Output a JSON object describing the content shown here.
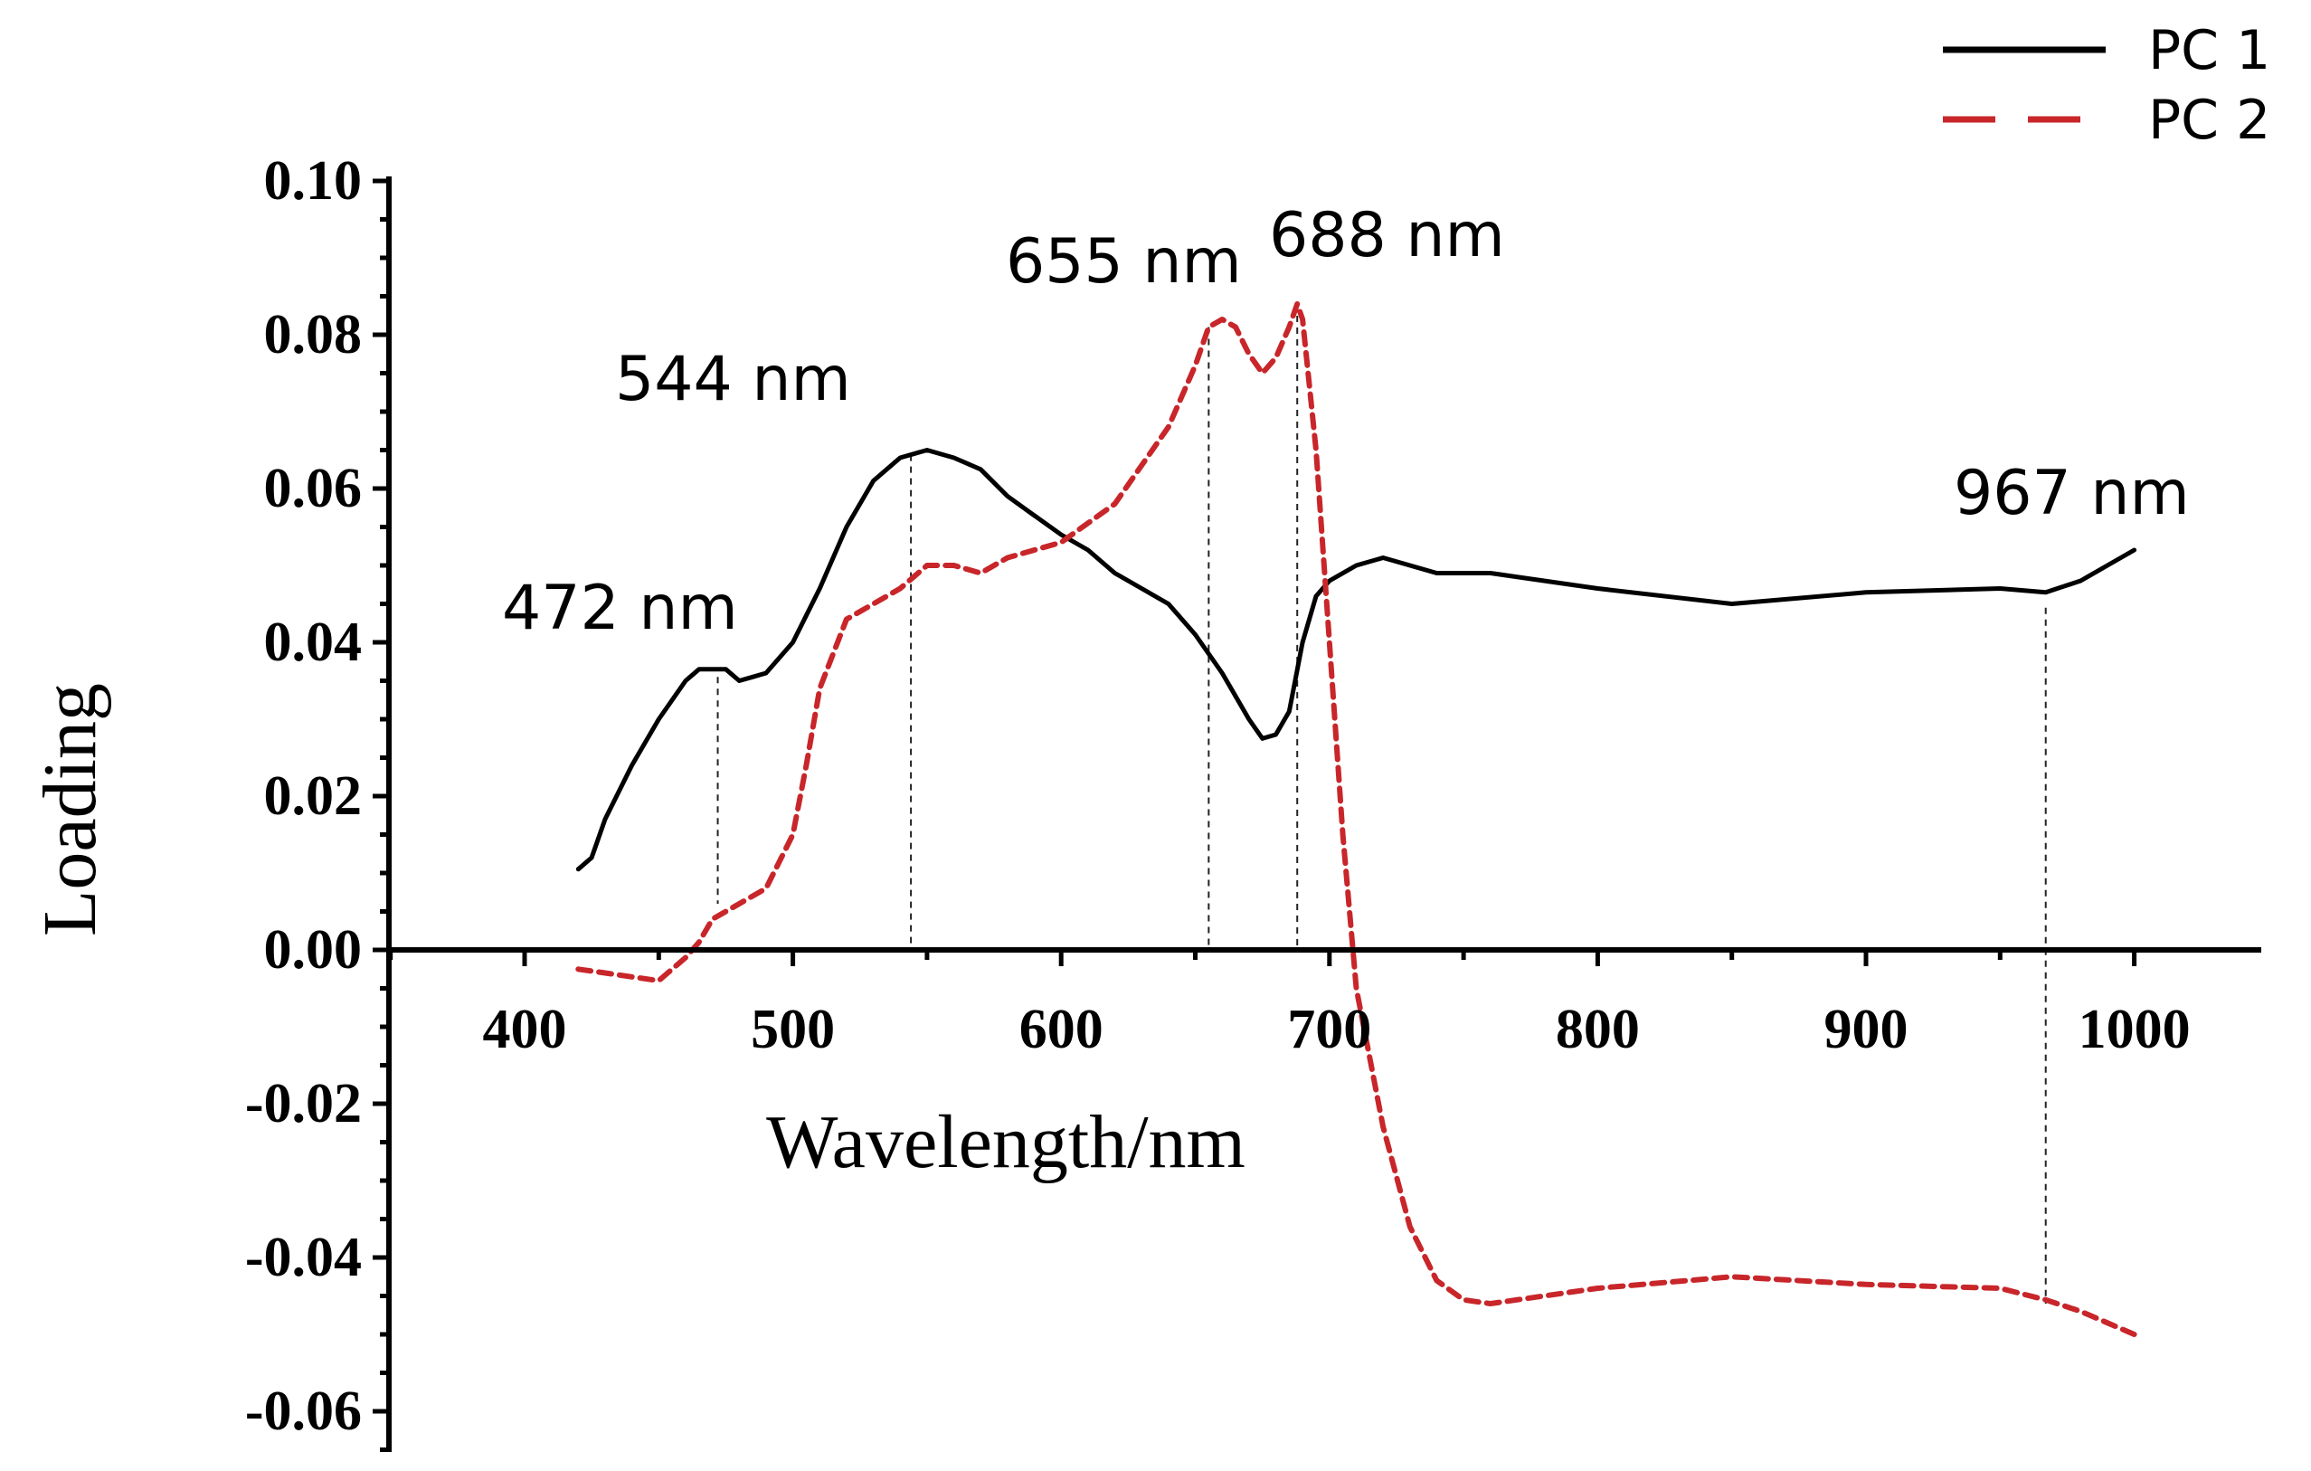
{
  "chart_data": {
    "type": "line",
    "title": "",
    "xlabel": "Wavelength/nm",
    "ylabel": "Loading",
    "xlim": [
      345,
      1050
    ],
    "ylim": [
      -0.065,
      0.1
    ],
    "x_ticks": [
      400,
      500,
      600,
      700,
      800,
      900,
      1000
    ],
    "x_tick_labels": [
      "400",
      "500",
      "600",
      "700",
      "800",
      "900",
      "1000"
    ],
    "y_ticks": [
      0.1,
      0.08,
      0.06,
      0.04,
      0.02,
      0.0,
      -0.02,
      -0.04,
      -0.06
    ],
    "y_tick_labels": [
      "0.10",
      "0.08",
      "0.06",
      "0.04",
      "0.02",
      "0.00",
      "-0.02",
      "-0.04",
      "-0.06"
    ],
    "grid": false,
    "legend_position": "top-right",
    "series": [
      {
        "name": "PC 1",
        "color": "#000000",
        "style": "solid",
        "x": [
          420,
          425,
          430,
          440,
          450,
          460,
          465,
          470,
          475,
          480,
          485,
          490,
          500,
          510,
          520,
          530,
          540,
          550,
          560,
          570,
          580,
          590,
          600,
          610,
          620,
          630,
          640,
          650,
          660,
          670,
          675,
          680,
          685,
          690,
          695,
          700,
          710,
          720,
          730,
          740,
          760,
          800,
          850,
          900,
          950,
          967,
          980,
          990,
          1000
        ],
        "y": [
          0.0105,
          0.012,
          0.017,
          0.024,
          0.03,
          0.035,
          0.0365,
          0.0365,
          0.0365,
          0.035,
          0.0355,
          0.036,
          0.04,
          0.047,
          0.055,
          0.061,
          0.064,
          0.065,
          0.064,
          0.0625,
          0.059,
          0.0565,
          0.054,
          0.052,
          0.049,
          0.047,
          0.045,
          0.041,
          0.036,
          0.03,
          0.0275,
          0.028,
          0.031,
          0.04,
          0.046,
          0.048,
          0.05,
          0.051,
          0.05,
          0.049,
          0.049,
          0.047,
          0.045,
          0.0465,
          0.047,
          0.0465,
          0.048,
          0.05,
          0.052
        ]
      },
      {
        "name": "PC 2",
        "color": "#c8262a",
        "style": "dashed",
        "x": [
          420,
          430,
          440,
          450,
          460,
          465,
          470,
          480,
          490,
          500,
          505,
          510,
          520,
          530,
          540,
          550,
          560,
          570,
          580,
          600,
          620,
          640,
          650,
          655,
          660,
          665,
          670,
          675,
          680,
          685,
          688,
          690,
          695,
          700,
          705,
          710,
          720,
          730,
          740,
          750,
          760,
          800,
          850,
          900,
          950,
          967,
          980,
          1000
        ],
        "y": [
          -0.0025,
          -0.003,
          -0.0035,
          -0.004,
          -0.001,
          0.001,
          0.004,
          0.006,
          0.008,
          0.015,
          0.024,
          0.034,
          0.043,
          0.045,
          0.047,
          0.05,
          0.05,
          0.049,
          0.051,
          0.053,
          0.058,
          0.068,
          0.076,
          0.081,
          0.082,
          0.081,
          0.0775,
          0.075,
          0.077,
          0.081,
          0.084,
          0.082,
          0.065,
          0.04,
          0.015,
          -0.005,
          -0.023,
          -0.036,
          -0.043,
          -0.0455,
          -0.046,
          -0.044,
          -0.0425,
          -0.0435,
          -0.044,
          -0.0455,
          -0.047,
          -0.05
        ]
      }
    ],
    "annotations": [
      {
        "text": "472 nm",
        "x": 472
      },
      {
        "text": "544 nm",
        "x": 544
      },
      {
        "text": "655 nm",
        "x": 655
      },
      {
        "text": "688 nm",
        "x": 688
      },
      {
        "text": "967 nm",
        "x": 967
      }
    ]
  }
}
